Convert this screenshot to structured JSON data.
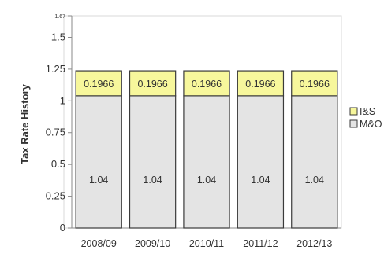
{
  "chart_data": {
    "type": "bar",
    "stacked": true,
    "title": "",
    "xlabel": "",
    "ylabel": "Tax Rate History",
    "categories": [
      "2008/09",
      "2009/10",
      "2010/11",
      "2011/12",
      "2012/13"
    ],
    "series": [
      {
        "name": "M&O",
        "values": [
          1.04,
          1.04,
          1.04,
          1.04,
          1.04
        ],
        "labels": [
          "1.04",
          "1.04",
          "1.04",
          "1.04",
          "1.04"
        ],
        "color": "#e4e4e4"
      },
      {
        "name": "I&S",
        "values": [
          0.1966,
          0.1966,
          0.1966,
          0.1966,
          0.1966
        ],
        "labels": [
          "0.1966",
          "0.1966",
          "0.1966",
          "0.1966",
          "0.1966"
        ],
        "color": "#f7f79c"
      }
    ],
    "ylim": [
      0,
      1.67
    ],
    "y_ticks": [
      0,
      0.25,
      0.5,
      0.75,
      1,
      1.25,
      1.5,
      1.67
    ],
    "y_tick_labels": [
      "0",
      "0.25",
      "0.5",
      "0.75",
      "1",
      "1.25",
      "1.5",
      "1.67"
    ],
    "grid": false,
    "legend_position": "right",
    "legend": [
      {
        "label": "I&S",
        "color": "#f7f79c"
      },
      {
        "label": "M&O",
        "color": "#e4e4e4"
      }
    ],
    "colors": {
      "bar_border": "#3a3a3a",
      "axis": "#8a8a8a",
      "text": "#333333"
    }
  }
}
